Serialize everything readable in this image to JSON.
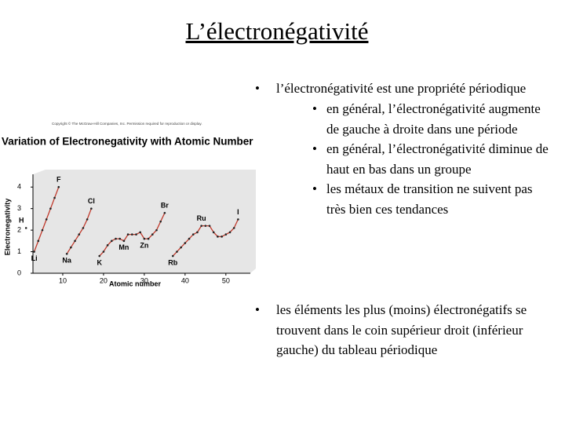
{
  "title": "L’électronégativité",
  "bullets": [
    {
      "text": "l’électronégativité est une propriété périodique",
      "sub": [
        "en général, l’électronégativité augmente de gauche à droite dans une période",
        "en général, l’électronégativité diminue de haut en bas dans un groupe",
        "les métaux de transition ne suivent pas très bien ces tendances"
      ]
    },
    {
      "text": "les éléments les plus (moins) électronégatifs se trouvent dans le coin supérieur droit (inférieur gauche) du tableau périodique",
      "sub": []
    }
  ],
  "chart_data": {
    "type": "line",
    "copyright": "Copyright © The McGraw-Hill Companies, Inc. Permission required for reproduction or display.",
    "title": "Variation of Electronegativity with Atomic Number",
    "xlabel": "Atomic number",
    "ylabel": "Electronegativity",
    "x": [
      1,
      2,
      3,
      4,
      5,
      6,
      7,
      8,
      9,
      10,
      11,
      12,
      13,
      14,
      15,
      16,
      17,
      18,
      19,
      20,
      21,
      22,
      23,
      24,
      25,
      26,
      27,
      28,
      29,
      30,
      31,
      32,
      33,
      34,
      35,
      36,
      37,
      38,
      39,
      40,
      41,
      42,
      43,
      44,
      45,
      46,
      47,
      48,
      49,
      50,
      51,
      52,
      53
    ],
    "values": [
      2.1,
      null,
      1.0,
      1.5,
      2.0,
      2.5,
      3.0,
      3.5,
      4.0,
      null,
      0.9,
      1.2,
      1.5,
      1.8,
      2.1,
      2.5,
      3.0,
      null,
      0.8,
      1.0,
      1.3,
      1.5,
      1.6,
      1.6,
      1.5,
      1.8,
      1.8,
      1.8,
      1.9,
      1.6,
      1.6,
      1.8,
      2.0,
      2.4,
      2.8,
      null,
      0.8,
      1.0,
      1.2,
      1.4,
      1.6,
      1.8,
      1.9,
      2.2,
      2.2,
      2.2,
      1.9,
      1.7,
      1.7,
      1.8,
      1.9,
      2.1,
      2.5
    ],
    "point_labels": [
      "H",
      null,
      "Li",
      null,
      null,
      null,
      null,
      null,
      "F",
      null,
      "Na",
      null,
      null,
      null,
      null,
      null,
      "Cl",
      null,
      "K",
      null,
      null,
      null,
      null,
      null,
      "Mn",
      null,
      null,
      null,
      null,
      "Zn",
      null,
      null,
      null,
      null,
      "Br",
      null,
      "Rb",
      null,
      null,
      null,
      null,
      null,
      null,
      "Ru",
      null,
      null,
      null,
      null,
      null,
      null,
      null,
      null,
      "I"
    ],
    "color": "#c0392b",
    "xlim": [
      0,
      56
    ],
    "ylim": [
      0,
      4.3
    ],
    "xticks": [
      10,
      20,
      30,
      40,
      50
    ],
    "yticks": [
      0,
      1,
      2,
      3,
      4
    ]
  }
}
